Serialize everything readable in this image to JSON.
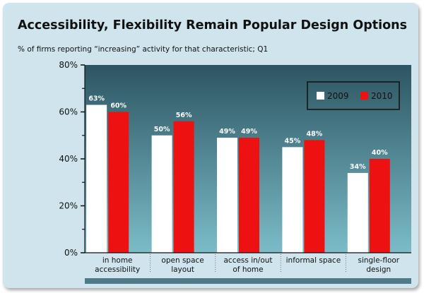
{
  "chart_data": {
    "type": "bar",
    "title": "Accessibility, Flexibility Remain Popular Design Options",
    "subtitle": "% of firms reporting “increasing” activity for that characteristic; Q1",
    "categories": [
      [
        "in home",
        "accessibility"
      ],
      [
        "open space",
        "layout"
      ],
      [
        "access in/out",
        "of home"
      ],
      [
        "informal space",
        ""
      ],
      [
        "single-floor",
        "design"
      ]
    ],
    "series": [
      {
        "name": "2009",
        "values": [
          63,
          50,
          49,
          45,
          34
        ],
        "labels": [
          "63%",
          "50%",
          "49%",
          "45%",
          "34%"
        ],
        "color": "#ffffff"
      },
      {
        "name": "2010",
        "values": [
          60,
          56,
          49,
          48,
          40
        ],
        "labels": [
          "60%",
          "56%",
          "49%",
          "48%",
          "40%"
        ],
        "color": "#ee1111"
      }
    ],
    "ylim": [
      0,
      80
    ],
    "yticks": [
      0,
      20,
      40,
      60,
      80
    ],
    "ytick_labels": [
      "0%",
      "20%",
      "40%",
      "60%",
      "80%"
    ],
    "legend_position": "top-right",
    "colors": {
      "plot_top": "#2d5562",
      "plot_bottom": "#7bbcc8",
      "frame_bg": "#cfe4ec",
      "base_strip": "#4f7b88"
    }
  }
}
